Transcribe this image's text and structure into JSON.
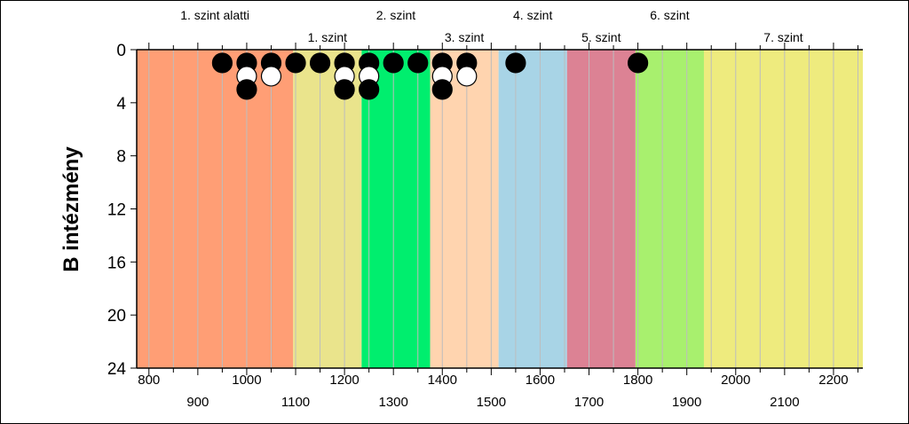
{
  "chart_data": {
    "type": "scatter",
    "ylabel": "B intézmény",
    "xlim": [
      775,
      2260
    ],
    "ylim": [
      0,
      24
    ],
    "y_ticks": [
      0,
      4,
      8,
      12,
      16,
      20,
      24
    ],
    "x_ticks_row1": [
      800,
      1000,
      1200,
      1400,
      1600,
      1800,
      2000,
      2200
    ],
    "x_ticks_row1_labels": [
      "800",
      "1000",
      "1200",
      "1400",
      "1600",
      "1800",
      "2000",
      "2200"
    ],
    "x_ticks_row2": [
      900,
      1100,
      1300,
      1500,
      1700,
      1900,
      2100
    ],
    "x_ticks_row2_labels": [
      "900",
      "1100",
      "1300",
      "1500",
      "1700",
      "1900",
      "2100"
    ],
    "levels": [
      {
        "label": "1. szint alatti",
        "from": 775,
        "to": 1095,
        "color": "#FF9E75",
        "label_row": 1
      },
      {
        "label": "1. szint",
        "from": 1095,
        "to": 1235,
        "color": "#EAE48C",
        "label_row": 2
      },
      {
        "label": "2. szint",
        "from": 1235,
        "to": 1375,
        "color": "#00EE6E",
        "label_row": 1
      },
      {
        "label": "3. szint",
        "from": 1375,
        "to": 1515,
        "color": "#FFD4AF",
        "label_row": 2
      },
      {
        "label": "4. szint",
        "from": 1515,
        "to": 1655,
        "color": "#A8D4E6",
        "label_row": 1
      },
      {
        "label": "5. szint",
        "from": 1655,
        "to": 1795,
        "color": "#DC8294",
        "label_row": 2
      },
      {
        "label": "6. szint",
        "from": 1795,
        "to": 1935,
        "color": "#A8F06E",
        "label_row": 1
      },
      {
        "label": "7. szint",
        "from": 1935,
        "to": 2260,
        "color": "#EEEB7E",
        "label_row": 2
      }
    ],
    "points": [
      {
        "x": 950,
        "y": 1,
        "fill": "black"
      },
      {
        "x": 1000,
        "y": 1,
        "fill": "black"
      },
      {
        "x": 1000,
        "y": 2,
        "fill": "white"
      },
      {
        "x": 1000,
        "y": 3,
        "fill": "black"
      },
      {
        "x": 1050,
        "y": 1,
        "fill": "black"
      },
      {
        "x": 1050,
        "y": 2,
        "fill": "white"
      },
      {
        "x": 1100,
        "y": 1,
        "fill": "black"
      },
      {
        "x": 1150,
        "y": 1,
        "fill": "black"
      },
      {
        "x": 1200,
        "y": 1,
        "fill": "black"
      },
      {
        "x": 1200,
        "y": 2,
        "fill": "white"
      },
      {
        "x": 1200,
        "y": 3,
        "fill": "black"
      },
      {
        "x": 1250,
        "y": 1,
        "fill": "black"
      },
      {
        "x": 1250,
        "y": 2,
        "fill": "white"
      },
      {
        "x": 1250,
        "y": 3,
        "fill": "black"
      },
      {
        "x": 1300,
        "y": 1,
        "fill": "black"
      },
      {
        "x": 1350,
        "y": 1,
        "fill": "black"
      },
      {
        "x": 1400,
        "y": 1,
        "fill": "black"
      },
      {
        "x": 1400,
        "y": 2,
        "fill": "white"
      },
      {
        "x": 1400,
        "y": 3,
        "fill": "black"
      },
      {
        "x": 1450,
        "y": 1,
        "fill": "black"
      },
      {
        "x": 1450,
        "y": 2,
        "fill": "white"
      },
      {
        "x": 1550,
        "y": 1,
        "fill": "black"
      },
      {
        "x": 1800,
        "y": 1,
        "fill": "black"
      }
    ],
    "grid_x": true,
    "grid_y": false
  }
}
